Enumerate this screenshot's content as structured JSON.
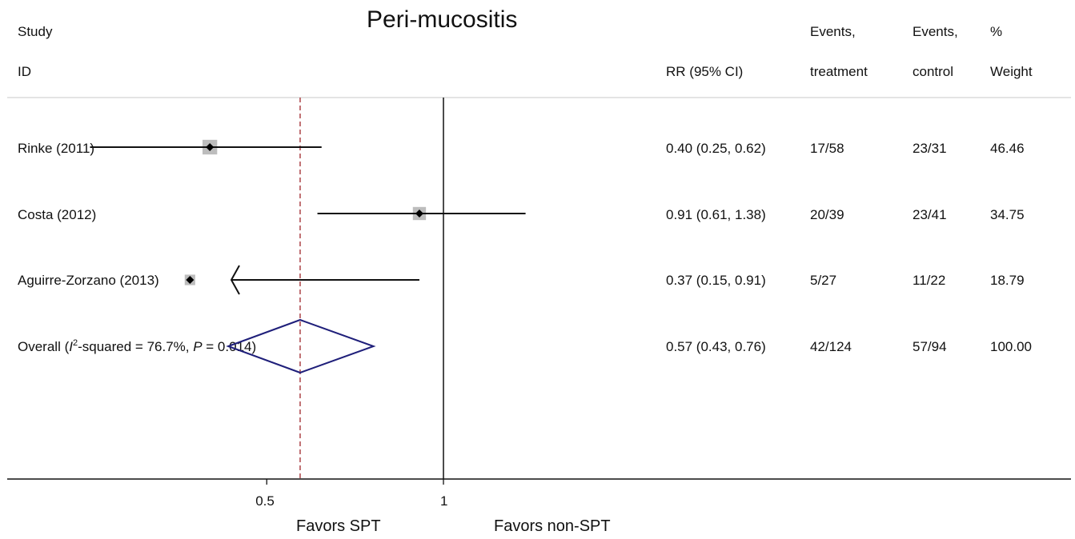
{
  "title": "Peri-mucositis",
  "headers": {
    "study": "Study",
    "id": "ID",
    "rr": "RR (95% CI)",
    "events_treatment_1": "Events,",
    "events_treatment_2": "treatment",
    "events_control_1": "Events,",
    "events_control_2": "control",
    "weight_1": "%",
    "weight_2": "Weight"
  },
  "overall_label": {
    "prefix": "Overall  (",
    "i": "I",
    "sup": "2",
    "middle": "-squared = 76.7%, ",
    "p": "P",
    "suffix": " = 0.014)"
  },
  "axis": {
    "tick_05": "0.5",
    "tick_1": "1",
    "favors_left": "Favors SPT",
    "favors_right": "Favors non-SPT"
  },
  "chart_data": {
    "type": "forest",
    "title": "Peri-mucositis",
    "scale": "log",
    "xlim": [
      0.2,
      10
    ],
    "reference_line": 1,
    "pooled_line": 0.57,
    "studies": [
      {
        "id": "Rinke (2011)",
        "rr": 0.4,
        "ci": [
          0.25,
          0.62
        ],
        "rr_text": "0.40 (0.25, 0.62)",
        "events_treatment": "17/58",
        "events_control": "23/31",
        "weight": "46.46",
        "weight_value": 46.46,
        "arrow_left": false
      },
      {
        "id": "Costa (2012)",
        "rr": 0.91,
        "ci": [
          0.61,
          1.38
        ],
        "rr_text": "0.91 (0.61, 1.38)",
        "events_treatment": "20/39",
        "events_control": "23/41",
        "weight": "34.75",
        "weight_value": 34.75,
        "arrow_left": false
      },
      {
        "id": "Aguirre-Zorzano (2013)",
        "rr": 0.37,
        "ci": [
          0.15,
          0.91
        ],
        "rr_text": "0.37 (0.15, 0.91)",
        "events_treatment": "5/27",
        "events_control": "11/22",
        "weight": "18.79",
        "weight_value": 18.79,
        "arrow_left": true
      }
    ],
    "overall": {
      "rr": 0.57,
      "ci": [
        0.43,
        0.76
      ],
      "rr_text": "0.57 (0.43, 0.76)",
      "events_treatment": "42/124",
      "events_control": "57/94",
      "weight": "100.00"
    },
    "colors": {
      "square": "#bdbdbd",
      "diamond": "#1f1f7a",
      "pooled_line": "#a0262b",
      "lines": "#111111"
    }
  }
}
